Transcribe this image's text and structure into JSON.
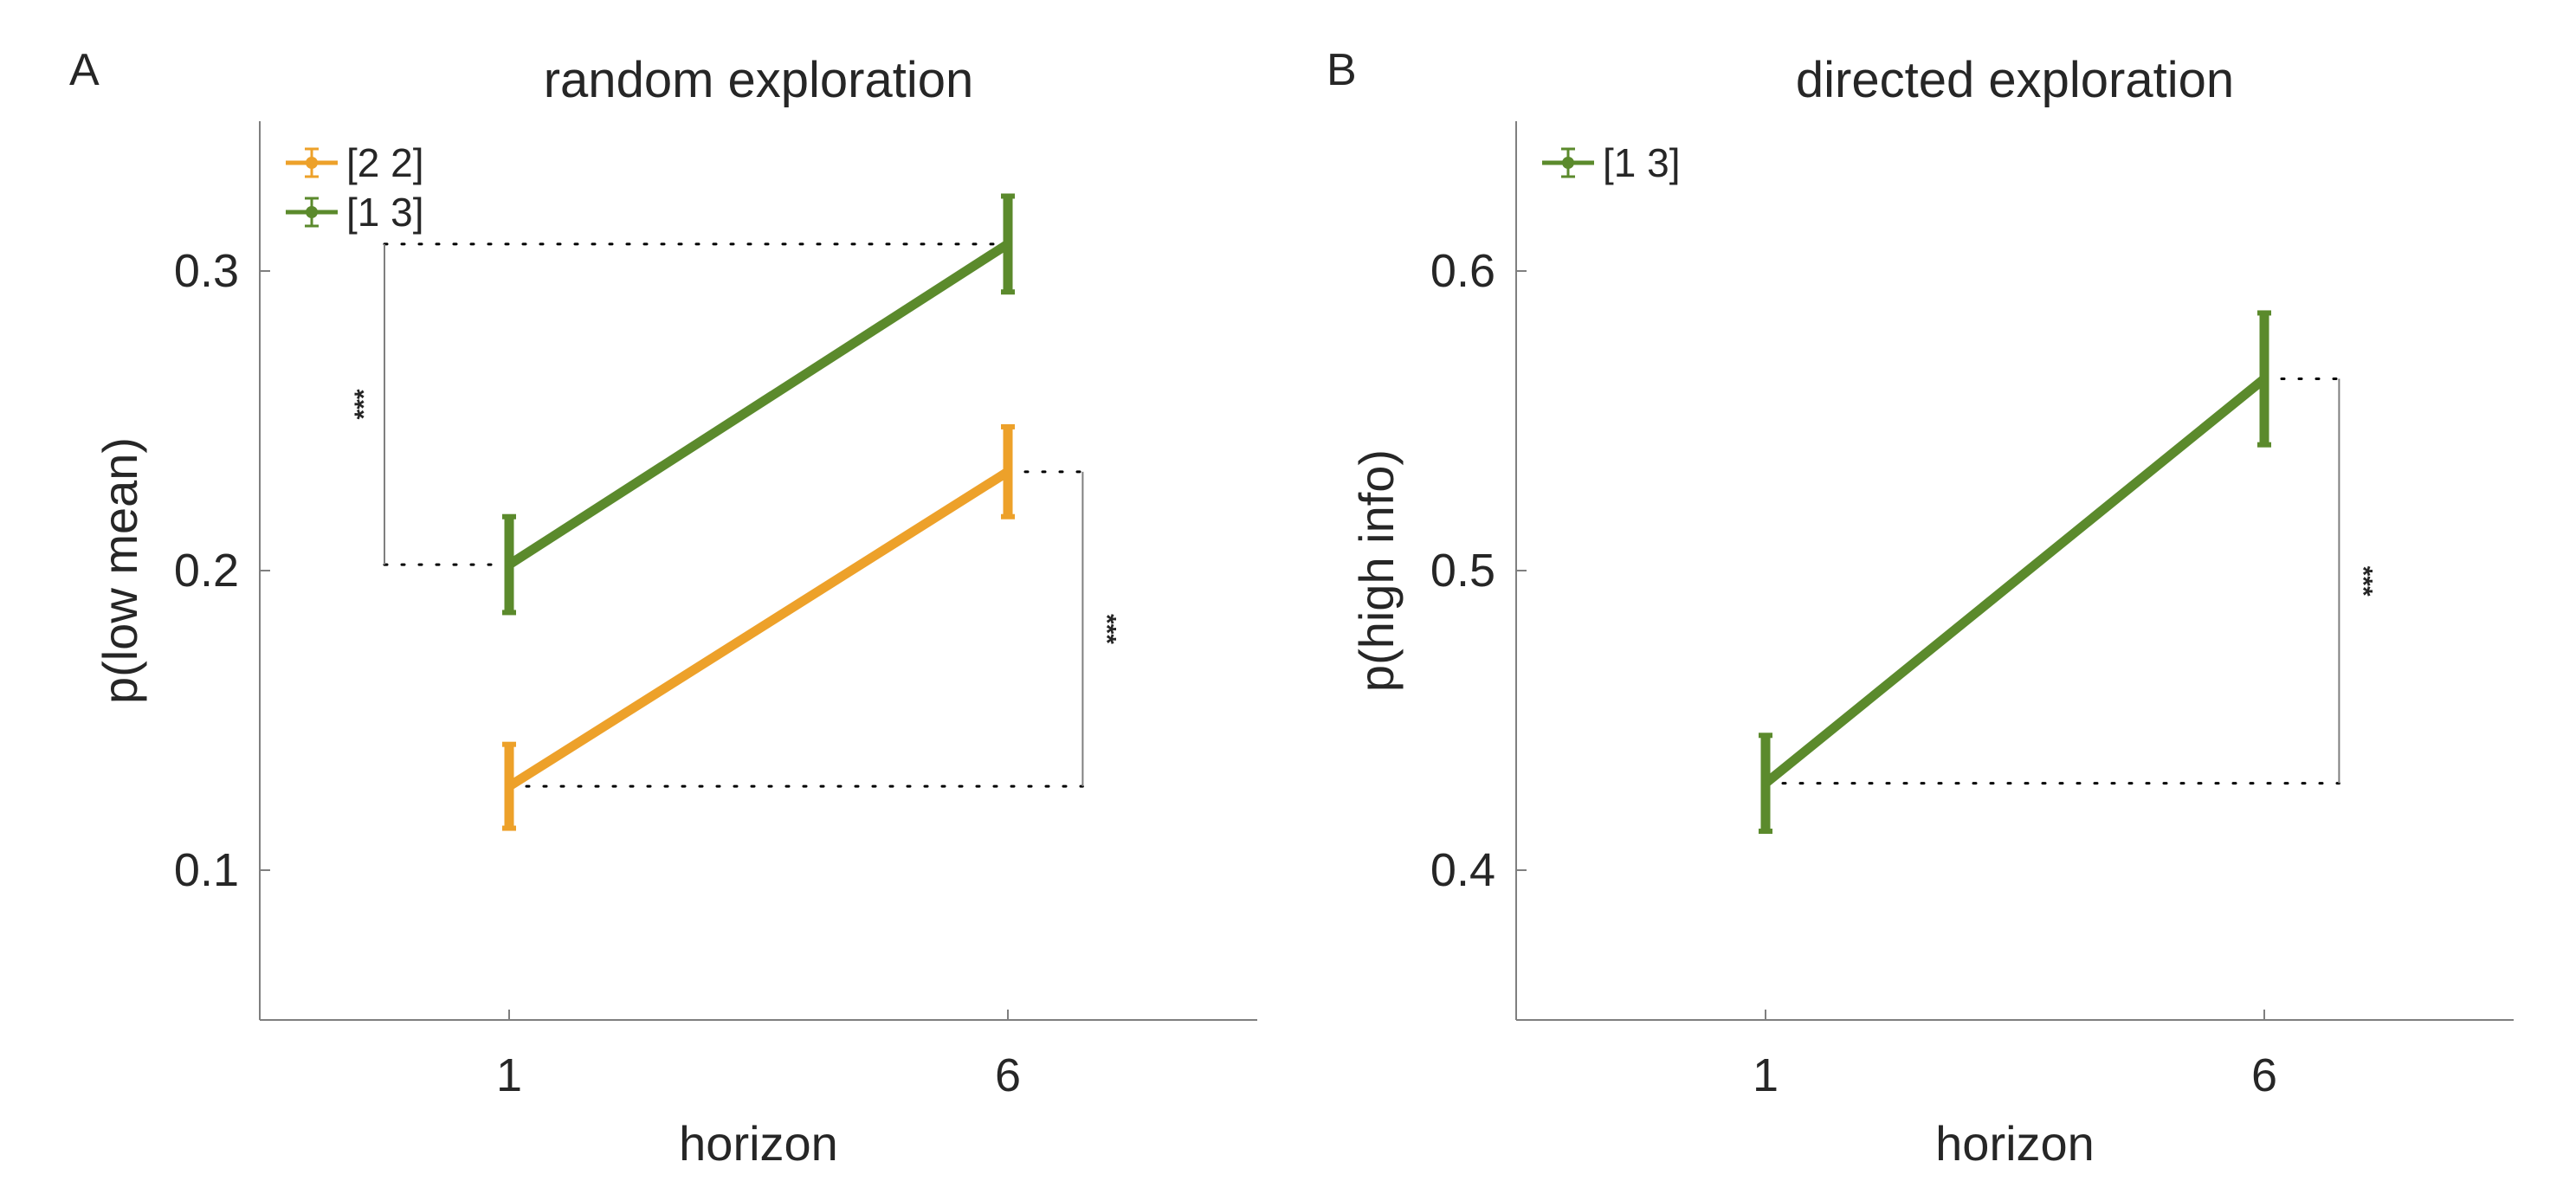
{
  "panels": [
    {
      "letter": "A",
      "chart_data": {
        "type": "line",
        "title": "random exploration",
        "xlabel": "horizon",
        "ylabel": "p(low mean)",
        "categories": [
          "1",
          "6"
        ],
        "xlim": [
          0.5,
          2.5
        ],
        "ylim": [
          0.05,
          0.35
        ],
        "yticks": [
          "0.1",
          "0.2",
          "0.3"
        ],
        "legend_position": "top-left",
        "series": [
          {
            "name": "[2 2]",
            "color": "#EDA12A",
            "values": [
              0.128,
              0.233
            ],
            "errors": [
              0.014,
              0.015
            ]
          },
          {
            "name": "[1 3]",
            "color": "#5B8A2C",
            "values": [
              0.202,
              0.309
            ],
            "errors": [
              0.016,
              0.016
            ]
          }
        ],
        "annotations": [
          {
            "label": "***",
            "from": 0.202,
            "to": 0.309,
            "side": "left"
          },
          {
            "label": "***",
            "from": 0.128,
            "to": 0.233,
            "side": "right"
          }
        ]
      }
    },
    {
      "letter": "B",
      "chart_data": {
        "type": "line",
        "title": "directed exploration",
        "xlabel": "horizon",
        "ylabel": "p(high info)",
        "categories": [
          "1",
          "6"
        ],
        "xlim": [
          0.5,
          2.5
        ],
        "ylim": [
          0.35,
          0.65
        ],
        "yticks": [
          "0.4",
          "0.5",
          "0.6"
        ],
        "legend_position": "top-left",
        "series": [
          {
            "name": "[1 3]",
            "color": "#5B8A2C",
            "values": [
              0.429,
              0.564
            ],
            "errors": [
              0.016,
              0.022
            ]
          }
        ],
        "annotations": [
          {
            "label": "***",
            "from": 0.429,
            "to": 0.564,
            "side": "right"
          }
        ]
      }
    }
  ]
}
